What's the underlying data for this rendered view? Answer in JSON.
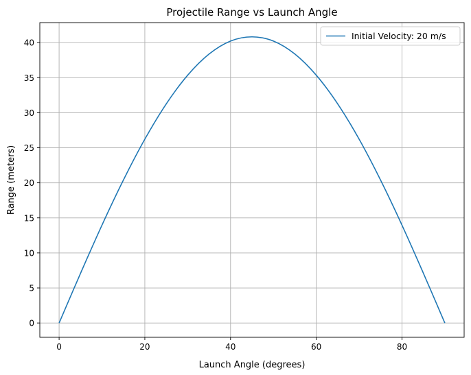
{
  "chart_data": {
    "type": "line",
    "title": "Projectile Range vs Launch Angle",
    "xlabel": "Launch Angle (degrees)",
    "ylabel": "Range (meters)",
    "xlim": [
      -4.5,
      94.5
    ],
    "ylim": [
      -2.04,
      42.85
    ],
    "xticks": [
      0,
      20,
      40,
      60,
      80
    ],
    "yticks": [
      0,
      5,
      10,
      15,
      20,
      25,
      30,
      35,
      40
    ],
    "xtick_labels": [
      "0",
      "20",
      "40",
      "60",
      "80"
    ],
    "ytick_labels": [
      "0",
      "5",
      "10",
      "15",
      "20",
      "25",
      "30",
      "35",
      "40"
    ],
    "grid": true,
    "legend": {
      "position": "top-right"
    },
    "series": [
      {
        "name": "Initial Velocity: 20 m/s",
        "color": "#1f77b4",
        "x": [
          0,
          5,
          10,
          15,
          20,
          25,
          30,
          35,
          40,
          45,
          50,
          55,
          60,
          65,
          70,
          75,
          80,
          85,
          90
        ],
        "y": [
          0.0,
          7.09,
          13.96,
          20.39,
          26.22,
          31.26,
          35.35,
          38.37,
          40.22,
          40.82,
          40.22,
          38.37,
          35.35,
          31.26,
          26.22,
          20.39,
          13.96,
          7.09,
          0.0
        ]
      }
    ]
  }
}
